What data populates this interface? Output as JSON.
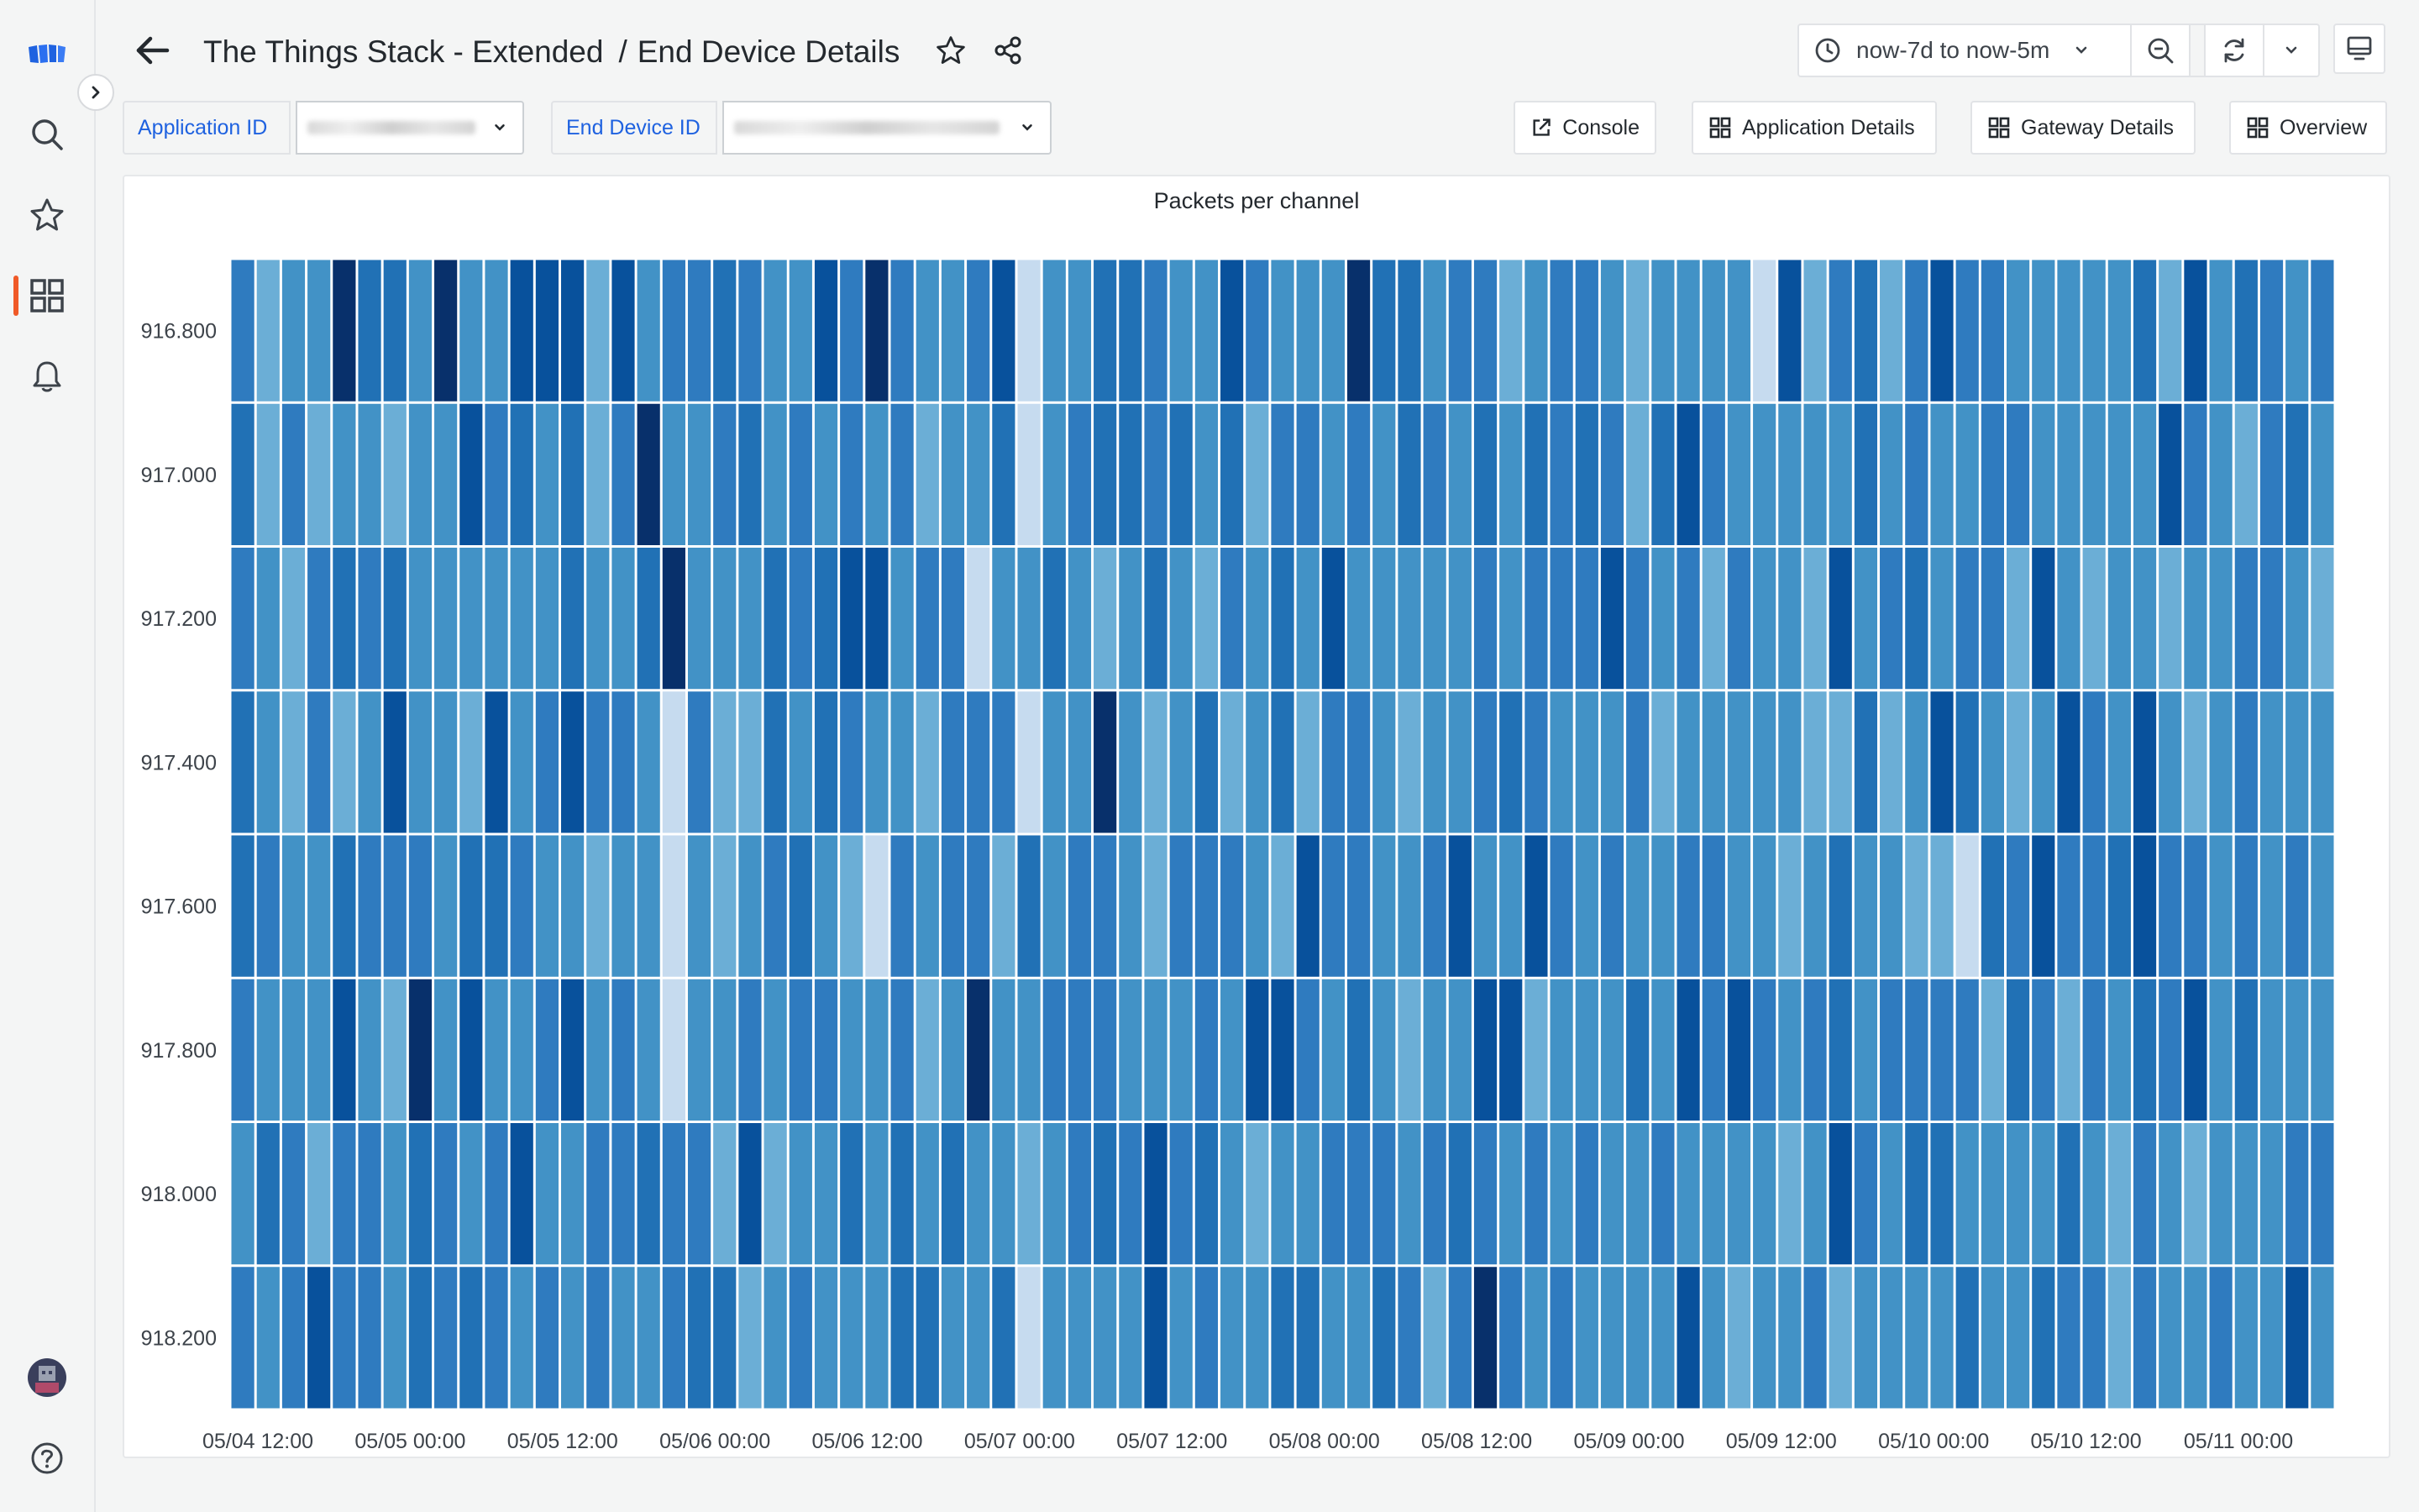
{
  "header": {
    "title": "The Things Stack - Extended",
    "separator": "/",
    "subtitle": "End Device Details"
  },
  "time_range": {
    "label": "now-7d to now-5m"
  },
  "variables": [
    {
      "label": "Application ID",
      "value": ""
    },
    {
      "label": "End Device ID",
      "value": ""
    }
  ],
  "links": [
    {
      "label": "Console",
      "icon": "external-link-icon"
    },
    {
      "label": "Application Details",
      "icon": "dashboard-grid-icon"
    },
    {
      "label": "Gateway Details",
      "icon": "dashboard-grid-icon"
    },
    {
      "label": "Overview",
      "icon": "dashboard-grid-icon"
    }
  ],
  "sidebar": {
    "items": [
      {
        "icon": "search-icon"
      },
      {
        "icon": "star-icon"
      },
      {
        "icon": "dashboards-icon",
        "active": true
      },
      {
        "icon": "bell-icon"
      },
      {
        "icon": "avatar"
      },
      {
        "icon": "help-icon"
      }
    ],
    "accent": "#f05a28"
  },
  "panel": {
    "title": "Packets per channel"
  },
  "chart_data": {
    "type": "heatmap",
    "title": "Packets per channel",
    "y_categories": [
      "918.200",
      "918.000",
      "917.800",
      "917.600",
      "917.400",
      "917.200",
      "917.000",
      "916.800"
    ],
    "x_tick_labels": [
      "05/04 12:00",
      "05/05 00:00",
      "05/05 12:00",
      "05/06 00:00",
      "05/06 12:00",
      "05/07 00:00",
      "05/07 12:00",
      "05/08 00:00",
      "05/08 12:00",
      "05/09 00:00",
      "05/09 12:00",
      "05/10 00:00",
      "05/10 12:00",
      "05/11 00:00"
    ],
    "buckets_per_row": 83,
    "color_scheme": "blues",
    "dark_cells": [
      {
        "row": "918.200",
        "bucket": 49
      },
      {
        "row": "916.800",
        "bucket": 4
      },
      {
        "row": "916.800",
        "bucket": 8
      },
      {
        "row": "916.800",
        "bucket": 25
      },
      {
        "row": "916.800",
        "bucket": 44
      },
      {
        "row": "917.000",
        "bucket": 16
      },
      {
        "row": "917.200",
        "bucket": 17
      },
      {
        "row": "917.400",
        "bucket": 34
      },
      {
        "row": "917.800",
        "bucket": 7
      },
      {
        "row": "917.800",
        "bucket": 29
      }
    ],
    "light_cells": [
      {
        "row": "917.400",
        "bucket": 31
      },
      {
        "row": "917.400",
        "bucket": 17
      },
      {
        "row": "917.600",
        "bucket": 17
      },
      {
        "row": "917.600",
        "bucket": 25
      },
      {
        "row": "917.600",
        "bucket": 68
      },
      {
        "row": "917.800",
        "bucket": 17
      },
      {
        "row": "918.200",
        "bucket": 31
      },
      {
        "row": "917.000",
        "bucket": 31
      },
      {
        "row": "917.200",
        "bucket": 29
      },
      {
        "row": "916.800",
        "bucket": 31
      },
      {
        "row": "916.800",
        "bucket": 60
      }
    ]
  }
}
